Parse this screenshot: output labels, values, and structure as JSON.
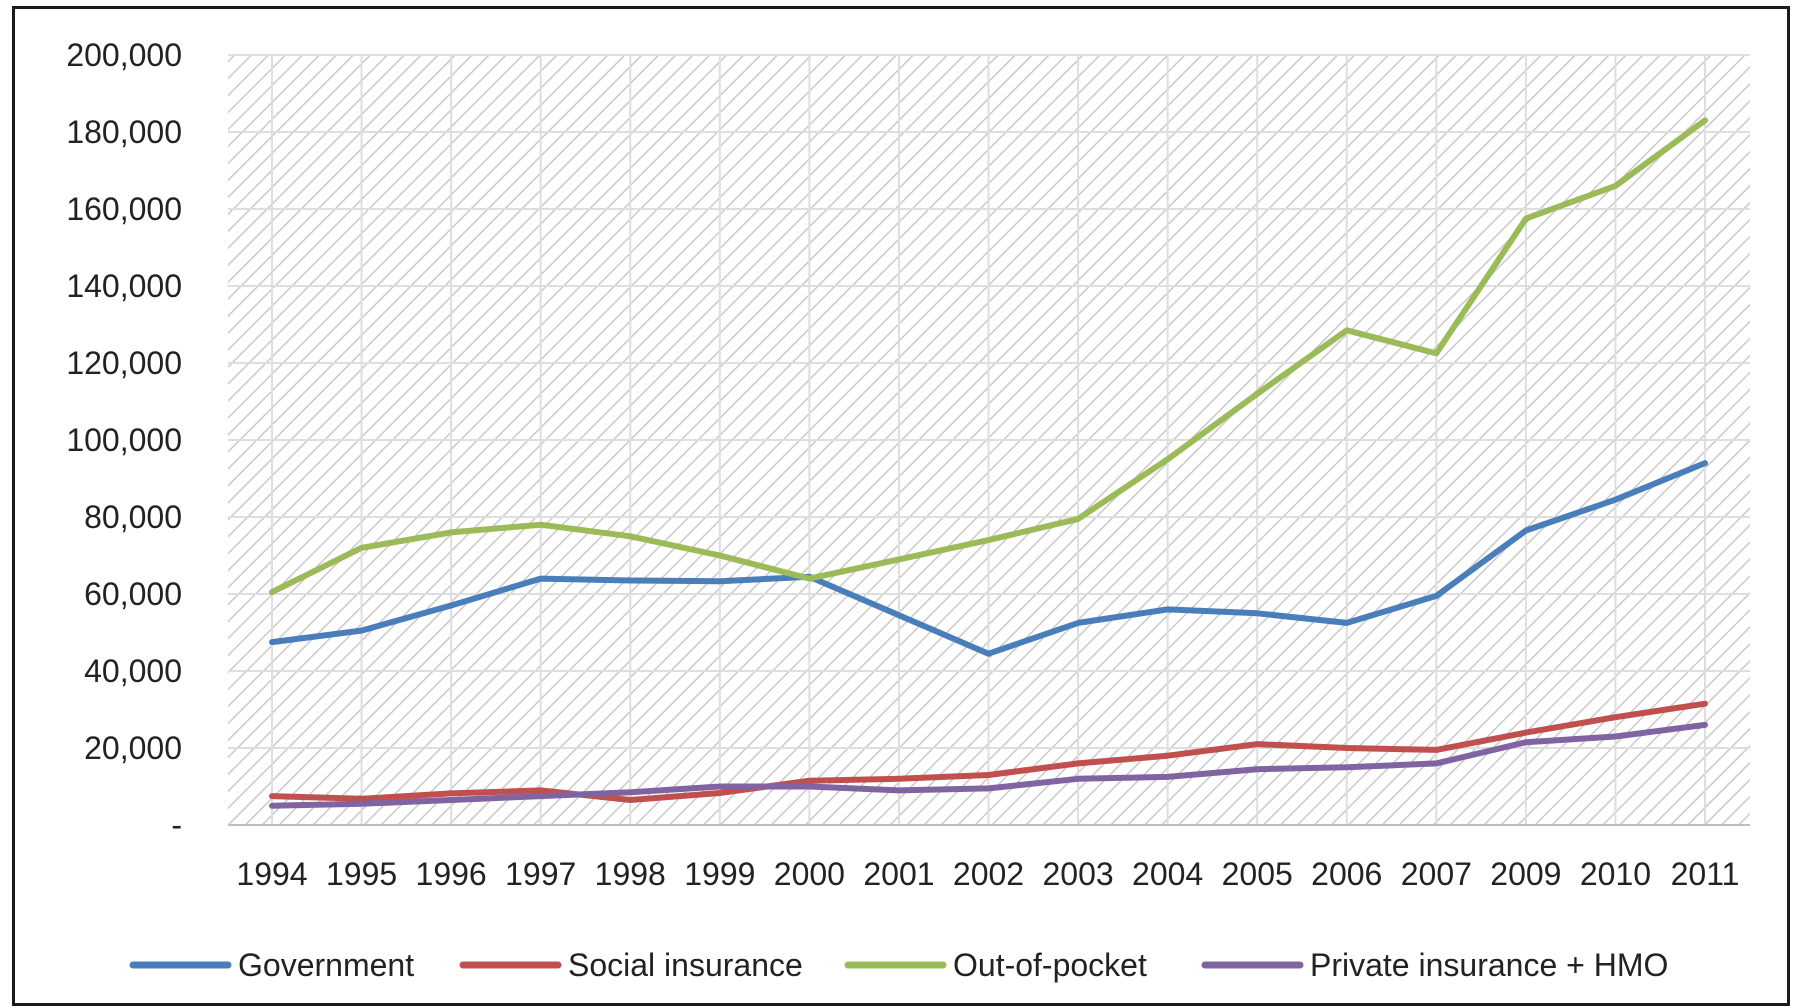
{
  "chart_data": {
    "type": "line",
    "title": "",
    "xlabel": "",
    "ylabel": "",
    "categories": [
      "1994",
      "1995",
      "1996",
      "1997",
      "1998",
      "1999",
      "2000",
      "2001",
      "2002",
      "2003",
      "2004",
      "2005",
      "2006",
      "2007",
      "2009",
      "2010",
      "2011"
    ],
    "ylim": [
      0,
      200000
    ],
    "y_ticks": [
      0,
      20000,
      40000,
      60000,
      80000,
      100000,
      120000,
      140000,
      160000,
      180000,
      200000
    ],
    "y_tick_labels": [
      "-",
      "20,000",
      "40,000",
      "60,000",
      "80,000",
      "100,000",
      "120,000",
      "140,000",
      "160,000",
      "180,000",
      "200,000"
    ],
    "grid": true,
    "legend_position": "bottom",
    "series": [
      {
        "name": "Government",
        "color": "#4a7ebb",
        "values": [
          47500,
          50500,
          57000,
          64000,
          63500,
          63300,
          64500,
          54500,
          44500,
          52500,
          56000,
          55000,
          52500,
          59500,
          76500,
          84500,
          94000
        ]
      },
      {
        "name": "Social insurance",
        "color": "#c0504d",
        "values": [
          7500,
          6800,
          8200,
          9000,
          6500,
          8300,
          11500,
          12000,
          13000,
          16000,
          18000,
          21000,
          20000,
          19500,
          24000,
          28000,
          31500
        ]
      },
      {
        "name": "Out-of-pocket",
        "color": "#9bbb59",
        "values": [
          60500,
          72000,
          76000,
          78000,
          75000,
          70000,
          64000,
          69000,
          74000,
          79500,
          95000,
          112000,
          128500,
          122500,
          157500,
          166000,
          183000
        ]
      },
      {
        "name": "Private insurance + HMO",
        "color": "#8064a2",
        "values": [
          5000,
          5500,
          6500,
          7500,
          8500,
          10000,
          10000,
          9000,
          9500,
          12000,
          12500,
          14500,
          15000,
          16000,
          21500,
          23000,
          26000
        ]
      }
    ]
  }
}
